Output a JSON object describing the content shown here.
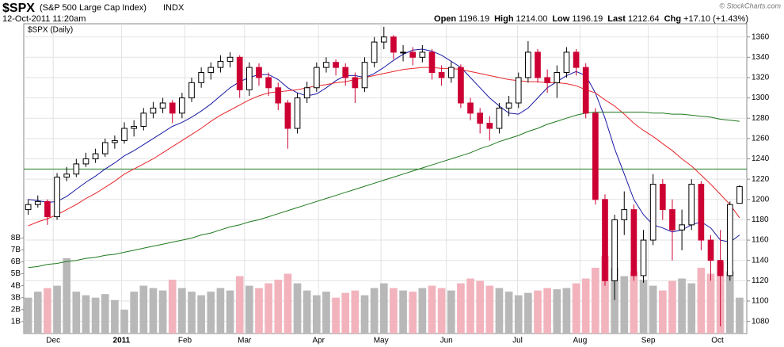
{
  "chart_data": {
    "type": "candlestick",
    "title": "$SPX",
    "subtitle": "(S&P 500 Large Cap Index)",
    "exchange": "INDX",
    "date": "12-Oct-2011 11:20am",
    "credit": "© StockCharts.com",
    "panel_label": "$SPX (Daily)",
    "quote": [
      {
        "label": "Open",
        "value": "1196.19"
      },
      {
        "label": "High",
        "value": "1214.00"
      },
      {
        "label": "Low",
        "value": "1196.19"
      },
      {
        "label": "Last",
        "value": "1212.64"
      },
      {
        "label": "Chg",
        "value": "+17.10 (+1.43%)"
      }
    ],
    "xlim": [
      -0.3,
      74.5
    ],
    "xticks": [
      {
        "value": 2.6,
        "label": "Dec"
      },
      {
        "value": 9.7,
        "label": "2011"
      },
      {
        "value": 16.3,
        "label": "Feb"
      },
      {
        "value": 22.5,
        "label": "Mar"
      },
      {
        "value": 30.2,
        "label": "Apr"
      },
      {
        "value": 36.7,
        "label": "May"
      },
      {
        "value": 43.5,
        "label": "Jun"
      },
      {
        "value": 50.9,
        "label": "Jul"
      },
      {
        "value": 57.4,
        "label": "Aug"
      },
      {
        "value": 64.5,
        "label": "Sep"
      },
      {
        "value": 71.7,
        "label": "Oct"
      }
    ],
    "ylim": [
      1068,
      1373
    ],
    "yticks": [
      1080,
      1100,
      1120,
      1140,
      1160,
      1180,
      1200,
      1220,
      1240,
      1260,
      1280,
      1300,
      1320,
      1340,
      1360
    ],
    "y2lim": [
      0,
      25.9
    ],
    "y2ticks": [
      {
        "value": 1,
        "label": "1B"
      },
      {
        "value": 2,
        "label": "2B"
      },
      {
        "value": 3,
        "label": "3B"
      },
      {
        "value": 4,
        "label": "4B"
      },
      {
        "value": 5,
        "label": "5B"
      },
      {
        "value": 6,
        "label": "6B"
      },
      {
        "value": 7,
        "label": "7B"
      },
      {
        "value": 8,
        "label": "8B"
      }
    ],
    "grid": true,
    "up_color": "#000000",
    "down_color": "#cc0033",
    "open": [
      1190,
      1195,
      1198,
      1183,
      1222,
      1225,
      1235,
      1240,
      1245,
      1256,
      1258,
      1270,
      1272,
      1285,
      1290,
      1295,
      1285,
      1300,
      1315,
      1325,
      1330,
      1336,
      1340,
      1308,
      1330,
      1320,
      1310,
      1295,
      1270,
      1300,
      1310,
      1330,
      1335,
      1330,
      1320,
      1310,
      1335,
      1355,
      1360,
      1345,
      1345,
      1340,
      1345,
      1325,
      1320,
      1330,
      1295,
      1285,
      1275,
      1270,
      1290,
      1295,
      1320,
      1345,
      1320,
      1315,
      1325,
      1345,
      1330,
      1285,
      1200,
      1120,
      1180,
      1190,
      1125,
      1160,
      1215,
      1190,
      1170,
      1175,
      1215,
      1160,
      1140,
      1125,
      1196.19
    ],
    "high": [
      1200,
      1204,
      1200,
      1226,
      1232,
      1240,
      1246,
      1250,
      1260,
      1263,
      1276,
      1278,
      1290,
      1296,
      1300,
      1298,
      1305,
      1320,
      1330,
      1335,
      1342,
      1345,
      1342,
      1335,
      1334,
      1325,
      1315,
      1298,
      1305,
      1316,
      1335,
      1340,
      1338,
      1334,
      1325,
      1340,
      1360,
      1370,
      1362,
      1352,
      1350,
      1352,
      1348,
      1332,
      1336,
      1333,
      1300,
      1290,
      1282,
      1295,
      1302,
      1325,
      1356,
      1348,
      1328,
      1332,
      1350,
      1348,
      1334,
      1290,
      1205,
      1185,
      1208,
      1195,
      1170,
      1225,
      1220,
      1200,
      1190,
      1220,
      1218,
      1165,
      1170,
      1198,
      1214
    ],
    "low": [
      1185,
      1192,
      1175,
      1180,
      1218,
      1222,
      1232,
      1236,
      1242,
      1250,
      1255,
      1262,
      1268,
      1280,
      1285,
      1275,
      1280,
      1296,
      1310,
      1318,
      1325,
      1330,
      1300,
      1302,
      1312,
      1302,
      1288,
      1250,
      1265,
      1295,
      1306,
      1325,
      1322,
      1312,
      1295,
      1306,
      1330,
      1348,
      1338,
      1336,
      1332,
      1335,
      1318,
      1312,
      1315,
      1290,
      1278,
      1265,
      1258,
      1265,
      1282,
      1290,
      1315,
      1315,
      1305,
      1300,
      1320,
      1322,
      1280,
      1195,
      1115,
      1101,
      1165,
      1120,
      1118,
      1155,
      1180,
      1140,
      1150,
      1170,
      1150,
      1120,
      1075,
      1120,
      1196.19
    ],
    "close": [
      1195,
      1198,
      1183,
      1222,
      1225,
      1235,
      1240,
      1245,
      1256,
      1258,
      1270,
      1272,
      1285,
      1290,
      1295,
      1285,
      1300,
      1315,
      1325,
      1330,
      1336,
      1340,
      1308,
      1330,
      1320,
      1310,
      1295,
      1270,
      1300,
      1310,
      1330,
      1335,
      1330,
      1320,
      1310,
      1335,
      1355,
      1360,
      1345,
      1345,
      1340,
      1345,
      1325,
      1320,
      1330,
      1295,
      1285,
      1275,
      1270,
      1290,
      1295,
      1320,
      1345,
      1320,
      1315,
      1325,
      1345,
      1330,
      1285,
      1200,
      1120,
      1180,
      1190,
      1125,
      1160,
      1215,
      1190,
      1170,
      1175,
      1215,
      1160,
      1140,
      1125,
      1195,
      1212.64
    ],
    "volume": {
      "axis": "y2",
      "up_color": "#b8b8b8",
      "down_color": "#f2b3bd",
      "values": [
        3.0,
        3.5,
        3.8,
        4.0,
        6.3,
        3.5,
        3.2,
        3.0,
        3.3,
        2.8,
        2.0,
        3.5,
        4.0,
        3.8,
        3.6,
        4.5,
        3.8,
        3.5,
        3.2,
        3.5,
        3.8,
        3.6,
        4.8,
        4.0,
        3.8,
        4.2,
        4.5,
        5.0,
        4.2,
        3.6,
        3.2,
        3.5,
        3.0,
        3.4,
        3.6,
        3.2,
        3.8,
        4.2,
        3.8,
        3.6,
        3.5,
        3.8,
        4.0,
        3.8,
        3.6,
        4.2,
        4.6,
        4.4,
        4.0,
        3.8,
        3.5,
        3.2,
        3.4,
        3.6,
        3.8,
        3.7,
        3.8,
        4.2,
        4.6,
        5.5,
        6.5,
        5.5,
        4.8,
        5.2,
        4.5,
        4.0,
        3.6,
        4.4,
        4.6,
        4.2,
        5.5,
        5.0,
        6.0,
        5.2,
        3.0
      ]
    },
    "overlays": [
      {
        "color": "#1a1aa6",
        "values": [
          1200,
          1199,
          1197,
          1198,
          1203,
          1210,
          1217,
          1223,
          1230,
          1236,
          1243,
          1248,
          1254,
          1260,
          1266,
          1272,
          1276,
          1281,
          1287,
          1294,
          1302,
          1310,
          1316,
          1320,
          1323,
          1323,
          1318,
          1310,
          1305,
          1302,
          1304,
          1310,
          1317,
          1322,
          1322,
          1320,
          1324,
          1330,
          1337,
          1343,
          1347,
          1348,
          1346,
          1342,
          1336,
          1330,
          1320,
          1310,
          1300,
          1292,
          1285,
          1284,
          1290,
          1300,
          1310,
          1316,
          1322,
          1326,
          1322,
          1305,
          1280,
          1250,
          1225,
          1200,
          1185,
          1175,
          1172,
          1168,
          1170,
          1175,
          1178,
          1172,
          1160,
          1158,
          1165
        ]
      },
      {
        "color": "#e8262b",
        "values": [
          1174,
          1178,
          1181,
          1185,
          1190,
          1195,
          1201,
          1206,
          1212,
          1218,
          1225,
          1230,
          1235,
          1240,
          1246,
          1252,
          1258,
          1264,
          1270,
          1277,
          1283,
          1288,
          1293,
          1298,
          1302,
          1305,
          1306,
          1307,
          1308,
          1310,
          1312,
          1313,
          1315,
          1316,
          1318,
          1320,
          1322,
          1324,
          1326,
          1328,
          1329,
          1330,
          1330,
          1329,
          1329,
          1328,
          1326,
          1324,
          1322,
          1320,
          1318,
          1317,
          1316,
          1316,
          1315,
          1315,
          1314,
          1312,
          1308,
          1305,
          1298,
          1292,
          1284,
          1275,
          1268,
          1262,
          1255,
          1248,
          1240,
          1233,
          1224,
          1215,
          1205,
          1195,
          1182
        ]
      },
      {
        "color": "#1f7a1f",
        "values": [
          1133,
          1134,
          1136,
          1137,
          1139,
          1140,
          1142,
          1143,
          1145,
          1146,
          1148,
          1150,
          1152,
          1154,
          1156,
          1158,
          1160,
          1162,
          1165,
          1167,
          1170,
          1173,
          1175,
          1178,
          1180,
          1183,
          1186,
          1189,
          1192,
          1195,
          1198,
          1201,
          1204,
          1207,
          1210,
          1213,
          1216,
          1219,
          1222,
          1225,
          1228,
          1231,
          1234,
          1237,
          1240,
          1243,
          1246,
          1250,
          1253,
          1257,
          1260,
          1263,
          1267,
          1270,
          1274,
          1277,
          1280,
          1283,
          1285,
          1286,
          1286,
          1286,
          1286,
          1286,
          1286,
          1285,
          1285,
          1284,
          1284,
          1283,
          1282,
          1281,
          1279,
          1278,
          1277
        ]
      }
    ],
    "hline": {
      "value": 1230,
      "color": "#1f7a1f"
    }
  }
}
